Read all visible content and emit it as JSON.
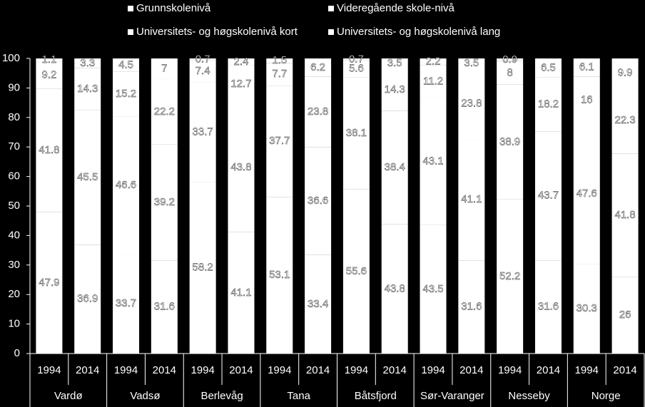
{
  "chart_data": {
    "type": "stacked-bar",
    "categories": [
      "1994",
      "2014",
      "1994",
      "2014",
      "1994",
      "2014",
      "1994",
      "2014",
      "1994",
      "2014",
      "1994",
      "2014",
      "1994",
      "2014",
      "1994",
      "2014"
    ],
    "groups": [
      "Vardø",
      "Vadsø",
      "Berlevåg",
      "Tana",
      "Båtsfjord",
      "Sør-Varanger",
      "Nesseby",
      "Norge"
    ],
    "series": [
      {
        "name": "Grunnskolenivå",
        "color": "#ffffff",
        "values": [
          47.9,
          36.9,
          33.7,
          31.6,
          58.2,
          41.1,
          53.1,
          33.4,
          55.6,
          43.8,
          43.5,
          31.6,
          52.2,
          31.6,
          30.3,
          26.0
        ]
      },
      {
        "name": "Videregående skole-nivå",
        "color": "#ffffff",
        "values": [
          41.8,
          45.5,
          46.6,
          39.2,
          33.7,
          43.8,
          37.7,
          36.6,
          38.1,
          38.4,
          43.1,
          41.1,
          38.9,
          43.7,
          47.6,
          41.8
        ]
      },
      {
        "name": "Universitets- og høgskolenivå kort",
        "color": "#ffffff",
        "values": [
          9.2,
          14.3,
          15.2,
          22.2,
          7.4,
          12.7,
          7.7,
          23.8,
          5.6,
          14.3,
          11.2,
          23.8,
          8.0,
          18.2,
          16.0,
          22.3
        ]
      },
      {
        "name": "Universitets- og høgskolenivå lang",
        "color": "#ffffff",
        "values": [
          1.1,
          3.3,
          4.5,
          7.0,
          0.7,
          2.4,
          1.5,
          6.2,
          0.7,
          3.5,
          2.2,
          3.5,
          0.9,
          6.5,
          6.1,
          9.9
        ]
      }
    ],
    "ylim": [
      0,
      100
    ],
    "yticks": [
      0,
      10,
      20,
      30,
      40,
      50,
      60,
      70,
      80,
      90,
      100
    ]
  }
}
